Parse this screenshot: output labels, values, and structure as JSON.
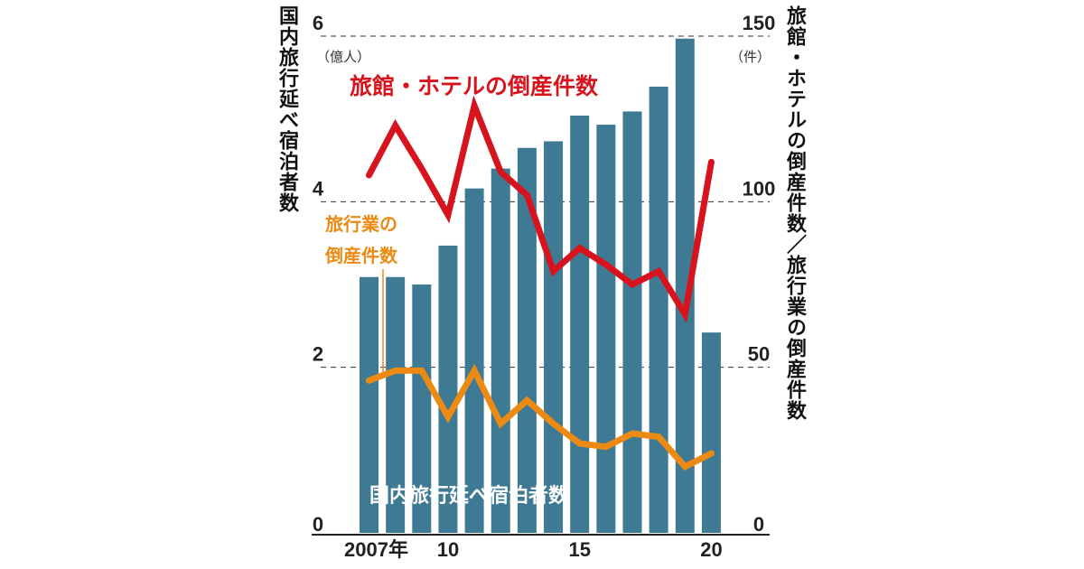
{
  "chart_data": {
    "type": "bar+line",
    "left_axis": {
      "label": "国内旅行延べ宿泊者数",
      "unit": "（億人）",
      "ylim": [
        0,
        6
      ],
      "ticks": [
        "0",
        "2",
        "4",
        "6"
      ]
    },
    "right_axis": {
      "label": "旅館・ホテルの倒産件数／旅行業の倒産件数",
      "unit": "（件）",
      "ylim": [
        0,
        150
      ],
      "ticks": [
        "0",
        "50",
        "100",
        "150"
      ]
    },
    "x": [
      2007,
      2008,
      2009,
      2010,
      2011,
      2012,
      2013,
      2014,
      2015,
      2016,
      2017,
      2018,
      2019,
      2020
    ],
    "x_tick_labels": [
      {
        "year": 2007,
        "label": "2007年"
      },
      {
        "year": 2010,
        "label": "10"
      },
      {
        "year": 2015,
        "label": "15"
      },
      {
        "year": 2020,
        "label": "20"
      }
    ],
    "grid": "dashed at 2, 4, 6",
    "series": [
      {
        "name": "国内旅行延べ宿泊者数",
        "type": "bar",
        "axis": "left",
        "color": "#3f7a94",
        "values": [
          3.09,
          3.09,
          3.0,
          3.47,
          4.16,
          4.4,
          4.65,
          4.73,
          5.04,
          4.93,
          5.09,
          5.39,
          5.97,
          2.42
        ]
      },
      {
        "name": "旅館・ホテルの倒産件数",
        "type": "line",
        "axis": "right",
        "color": "#d7141e",
        "values": [
          108,
          123,
          110,
          96,
          129,
          109,
          102,
          79,
          86,
          81,
          75,
          79,
          66,
          112
        ]
      },
      {
        "name": "旅行業の倒産件数",
        "type": "line",
        "axis": "right",
        "color": "#ec8a14",
        "values": [
          46,
          49,
          49,
          35,
          49,
          33,
          40,
          33,
          27,
          26,
          30,
          29,
          20,
          24
        ]
      }
    ],
    "annotations": {
      "hotel": "旅館・ホテルの倒産件数",
      "travel_line1": "旅行業の",
      "travel_line2": "倒産件数",
      "bars": "国内旅行延べ宿泊者数"
    }
  }
}
